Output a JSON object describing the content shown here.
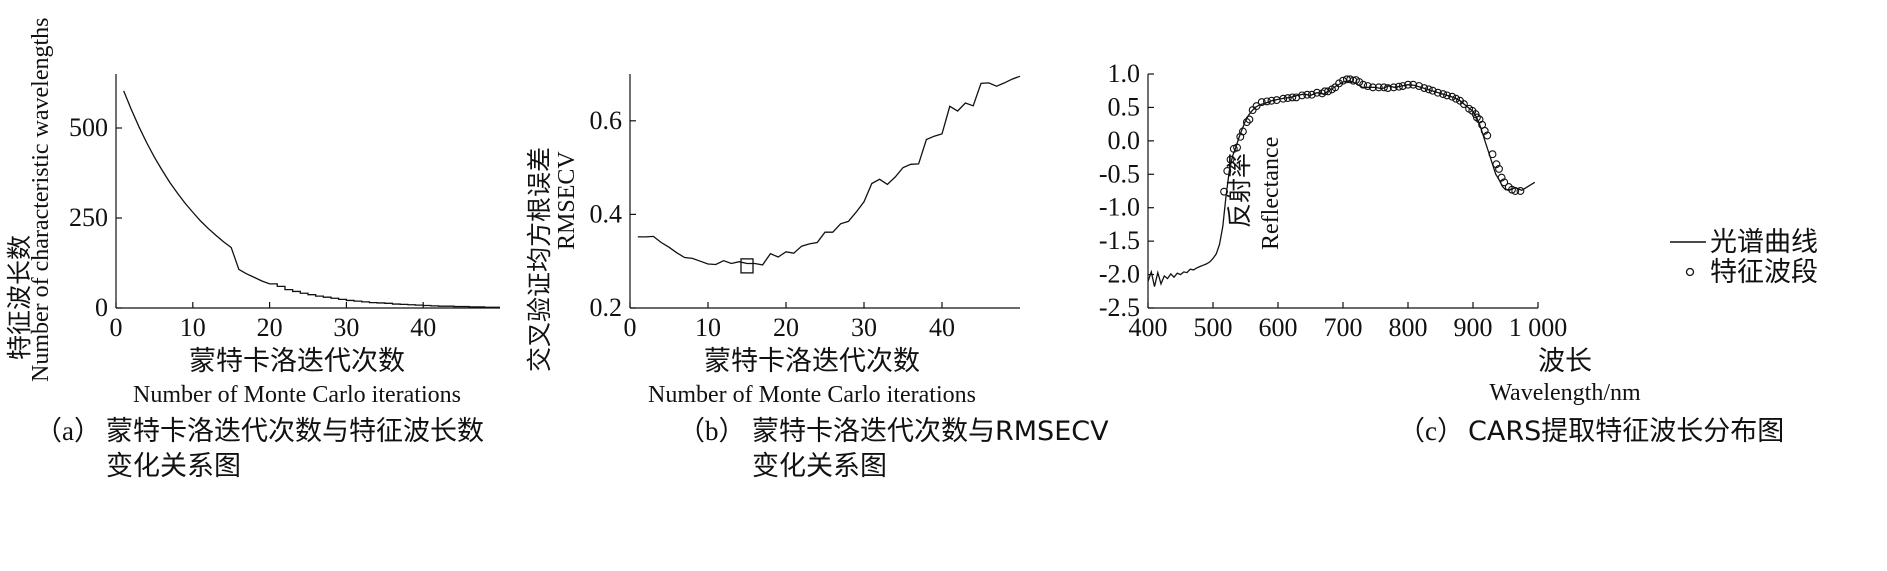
{
  "chart_data": [
    {
      "type": "line",
      "panel": "a",
      "xlabel_cn": "蒙特卡洛迭代次数",
      "xlabel_en": "Number of Monte Carlo iterations",
      "ylabel_cn": "特征波长数",
      "ylabel_en": "Number of characteristic wavelengths",
      "xlim": [
        0,
        50
      ],
      "ylim": [
        0,
        650
      ],
      "xticks": [
        0,
        10,
        20,
        30,
        40
      ],
      "yticks": [
        0,
        250,
        500
      ],
      "caption_label": "（a）",
      "caption_line1": "蒙特卡洛迭代次数与特征波长数",
      "caption_line2": "变化关系图",
      "series": [
        {
          "x": [
            1,
            2,
            3,
            4,
            5,
            6,
            7,
            8,
            9,
            10,
            11,
            12,
            13,
            14,
            15,
            16,
            17,
            18,
            19,
            20,
            21,
            22,
            23,
            24,
            25,
            26,
            27,
            28,
            29,
            30,
            31,
            32,
            33,
            34,
            35,
            36,
            37,
            38,
            39,
            40,
            41,
            42,
            43,
            44,
            45,
            46,
            47,
            48,
            49,
            50
          ],
          "values": [
            603,
            551,
            503,
            459,
            419,
            383,
            349,
            319,
            291,
            266,
            242,
            221,
            202,
            184,
            168,
            107,
            95,
            85,
            75,
            67,
            60,
            51,
            46,
            41,
            37,
            33,
            30,
            27,
            24,
            21,
            19,
            17,
            15,
            14,
            13,
            11,
            10,
            9,
            8,
            7,
            6,
            5,
            5,
            4,
            4,
            3,
            3,
            2,
            2,
            2
          ]
        }
      ]
    },
    {
      "type": "line",
      "panel": "b",
      "xlabel_cn": "蒙特卡洛迭代次数",
      "xlabel_en": "Number of Monte Carlo iterations",
      "ylabel_cn": "交叉验证均方根误差",
      "ylabel_en": "RMSECV",
      "xlim": [
        0,
        50
      ],
      "ylim": [
        0.2,
        0.7
      ],
      "xticks": [
        0,
        10,
        20,
        30,
        40
      ],
      "yticks": [
        "0.2",
        "0.4",
        "0.6"
      ],
      "caption_label": "（b）",
      "caption_line1": "蒙特卡洛迭代次数与RMSECV",
      "caption_line2": "变化关系图",
      "marker": {
        "x": 15,
        "y": 0.29
      },
      "series": [
        {
          "x": [
            1,
            2,
            3,
            4,
            5,
            6,
            7,
            8,
            9,
            10,
            11,
            12,
            13,
            14,
            15,
            16,
            17,
            18,
            19,
            20,
            21,
            22,
            23,
            24,
            25,
            26,
            27,
            28,
            29,
            30,
            31,
            32,
            33,
            34,
            35,
            36,
            37,
            38,
            39,
            40,
            41,
            42,
            43,
            44,
            45,
            46,
            47,
            48,
            49,
            50
          ],
          "values": [
            0.352,
            0.352,
            0.353,
            0.34,
            0.33,
            0.318,
            0.308,
            0.306,
            0.3,
            0.294,
            0.293,
            0.301,
            0.295,
            0.299,
            0.295,
            0.295,
            0.292,
            0.316,
            0.309,
            0.32,
            0.317,
            0.332,
            0.337,
            0.34,
            0.362,
            0.362,
            0.38,
            0.385,
            0.405,
            0.427,
            0.466,
            0.475,
            0.464,
            0.48,
            0.5,
            0.507,
            0.508,
            0.56,
            0.567,
            0.572,
            0.631,
            0.621,
            0.638,
            0.632,
            0.68,
            0.681,
            0.674,
            0.681,
            0.689,
            0.695
          ]
        }
      ]
    },
    {
      "type": "line",
      "panel": "c",
      "xlabel_cn": "波长",
      "xlabel_en": "Wavelength/nm",
      "ylabel_cn": "反射率",
      "ylabel_en": "Reflectance",
      "xlim": [
        400,
        1000
      ],
      "ylim": [
        -2.5,
        1.0
      ],
      "xticks": [
        "400",
        "500",
        "600",
        "700",
        "800",
        "900",
        "1 000"
      ],
      "yticks": [
        "-2.5",
        "-2.0",
        "-1.5",
        "-1.0",
        "-0.5",
        "0.0",
        "0.5",
        "1.0"
      ],
      "caption_label": "（c）",
      "caption_line1": "CARS提取特征波长分布图",
      "legend": [
        "光谱曲线",
        "特征波段"
      ],
      "series": [
        {
          "name": "光谱曲线",
          "x": [
            400,
            405,
            410,
            415,
            420,
            425,
            430,
            435,
            440,
            445,
            450,
            455,
            460,
            465,
            470,
            475,
            480,
            485,
            490,
            495,
            500,
            505,
            510,
            515,
            520,
            525,
            530,
            535,
            540,
            545,
            550,
            555,
            560,
            565,
            570,
            575,
            580,
            585,
            590,
            595,
            600,
            610,
            620,
            630,
            640,
            650,
            660,
            670,
            680,
            690,
            700,
            710,
            720,
            730,
            740,
            750,
            760,
            770,
            780,
            790,
            800,
            810,
            820,
            830,
            840,
            850,
            860,
            870,
            880,
            890,
            900,
            905,
            910,
            915,
            920,
            925,
            930,
            935,
            940,
            945,
            950,
            955,
            960,
            965,
            970,
            975,
            980,
            985,
            990,
            995
          ],
          "values": [
            -2.1,
            -1.96,
            -2.18,
            -1.97,
            -2.14,
            -2.02,
            -2.06,
            -1.99,
            -2.04,
            -1.98,
            -2.0,
            -1.96,
            -1.97,
            -1.92,
            -1.93,
            -1.9,
            -1.88,
            -1.86,
            -1.84,
            -1.81,
            -1.76,
            -1.69,
            -1.55,
            -1.28,
            -0.83,
            -0.45,
            -0.23,
            -0.1,
            0.05,
            0.18,
            0.3,
            0.39,
            0.45,
            0.5,
            0.53,
            0.55,
            0.56,
            0.58,
            0.6,
            0.61,
            0.62,
            0.64,
            0.65,
            0.68,
            0.7,
            0.68,
            0.72,
            0.7,
            0.76,
            0.82,
            0.88,
            0.9,
            0.86,
            0.8,
            0.8,
            0.8,
            0.78,
            0.82,
            0.8,
            0.82,
            0.84,
            0.83,
            0.8,
            0.77,
            0.74,
            0.71,
            0.68,
            0.65,
            0.6,
            0.52,
            0.44,
            0.36,
            0.25,
            0.1,
            -0.05,
            -0.2,
            -0.35,
            -0.5,
            -0.58,
            -0.68,
            -0.73,
            -0.73,
            -0.72,
            -0.7,
            -0.72,
            -0.74,
            -0.71,
            -0.68,
            -0.65,
            -0.62
          ]
        },
        {
          "name": "特征波段",
          "x": [
            517,
            522,
            527,
            532,
            537,
            542,
            546,
            552,
            556,
            561,
            567,
            575,
            583,
            590,
            598,
            608,
            615,
            622,
            628,
            637,
            645,
            652,
            660,
            668,
            672,
            677,
            683,
            688,
            694,
            700,
            706,
            711,
            716,
            720,
            725,
            731,
            738,
            746,
            755,
            763,
            769,
            778,
            786,
            792,
            800,
            808,
            817,
            825,
            832,
            838,
            846,
            854,
            860,
            868,
            874,
            880,
            886,
            894,
            899,
            904,
            906,
            910,
            914,
            918,
            922,
            930,
            936,
            940,
            944,
            948,
            955,
            960,
            965,
            973
          ],
          "values": [
            -0.76,
            -0.45,
            -0.28,
            -0.12,
            -0.1,
            0.06,
            0.14,
            0.28,
            0.32,
            0.46,
            0.52,
            0.58,
            0.59,
            0.6,
            0.61,
            0.63,
            0.64,
            0.65,
            0.65,
            0.68,
            0.69,
            0.69,
            0.72,
            0.71,
            0.74,
            0.74,
            0.77,
            0.8,
            0.86,
            0.9,
            0.92,
            0.92,
            0.9,
            0.91,
            0.88,
            0.84,
            0.82,
            0.8,
            0.8,
            0.8,
            0.79,
            0.8,
            0.81,
            0.82,
            0.84,
            0.84,
            0.82,
            0.79,
            0.77,
            0.75,
            0.72,
            0.7,
            0.68,
            0.66,
            0.63,
            0.6,
            0.55,
            0.48,
            0.45,
            0.4,
            0.35,
            0.32,
            0.24,
            0.15,
            0.08,
            -0.2,
            -0.35,
            -0.42,
            -0.55,
            -0.62,
            -0.69,
            -0.73,
            -0.75,
            -0.75
          ]
        }
      ]
    }
  ]
}
